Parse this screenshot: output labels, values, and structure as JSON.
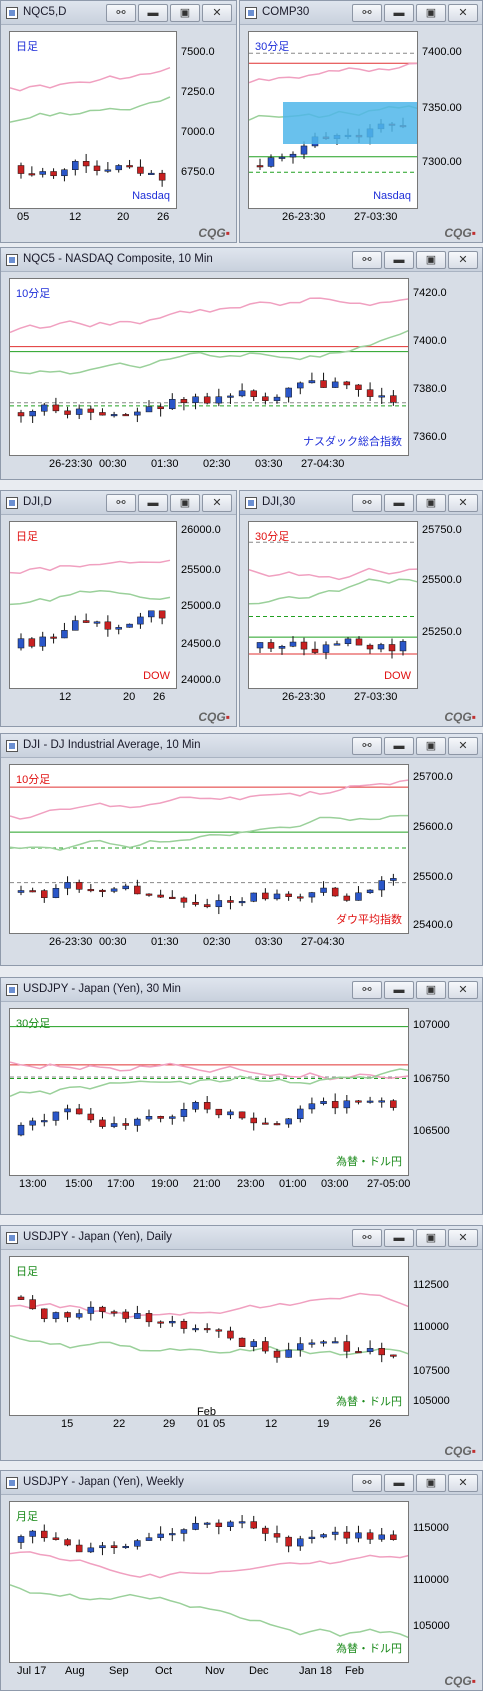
{
  "windows": [
    {
      "id": "w1",
      "title": "NQC5,D",
      "label": "日足",
      "caption": "Nasdaq",
      "label_color": "#1f2fd8",
      "caption_color": "#1f2fd8",
      "yticks": [
        "7500.0",
        "7250.0",
        "7000.0",
        "6750.0"
      ],
      "xticks": [
        "05",
        "12",
        "20",
        "26"
      ],
      "brand": "CQG"
    },
    {
      "id": "w2",
      "title": "COMP30",
      "label": "30分足",
      "caption": "Nasdaq",
      "label_color": "#1f2fd8",
      "caption_color": "#1f2fd8",
      "yticks": [
        "7400.00",
        "7350.00",
        "7300.00"
      ],
      "xticks": [
        "26-23:30",
        "27-03:30"
      ],
      "brand": "CQG"
    },
    {
      "id": "w3",
      "title": "NQC5 - NASDAQ Composite, 10 Min",
      "label": "10分足",
      "caption": "ナスダック総合指数",
      "label_color": "#1f2fd8",
      "caption_color": "#1f2fd8",
      "yticks": [
        "7420.0",
        "7400.0",
        "7380.0",
        "7360.0"
      ],
      "xticks": [
        "26-23:30",
        "00:30",
        "01:30",
        "02:30",
        "03:30",
        "27-04:30"
      ]
    },
    {
      "id": "w4",
      "title": "DJI,D",
      "label": "日足",
      "caption": "DOW",
      "label_color": "#e01010",
      "caption_color": "#e01010",
      "yticks": [
        "26000.0",
        "25500.0",
        "25000.0",
        "24500.0",
        "24000.0"
      ],
      "xticks": [
        "12",
        "20",
        "26"
      ],
      "brand": "CQG"
    },
    {
      "id": "w5",
      "title": "DJI,30",
      "label": "30分足",
      "caption": "DOW",
      "label_color": "#e01010",
      "caption_color": "#e01010",
      "yticks": [
        "25750.0",
        "25500.0",
        "25250.0"
      ],
      "xticks": [
        "26-23:30",
        "27-03:30"
      ],
      "brand": "CQG"
    },
    {
      "id": "w6",
      "title": "DJI - DJ Industrial Average, 10 Min",
      "label": "10分足",
      "caption": "ダウ平均指数",
      "label_color": "#e01010",
      "caption_color": "#e01010",
      "yticks": [
        "25700.0",
        "25600.0",
        "25500.0",
        "25400.0"
      ],
      "xticks": [
        "26-23:30",
        "00:30",
        "01:30",
        "02:30",
        "03:30",
        "27-04:30"
      ]
    },
    {
      "id": "w7",
      "title": "USDJPY - Japan (Yen), 30 Min",
      "label": "30分足",
      "caption": "為替・ドル円",
      "label_color": "#1a8a1a",
      "caption_color": "#1a8a1a",
      "yticks": [
        "107000",
        "106750",
        "106500"
      ],
      "xticks": [
        "13:00",
        "15:00",
        "17:00",
        "19:00",
        "21:00",
        "23:00",
        "01:00",
        "03:00",
        "27-05:00"
      ]
    },
    {
      "id": "w8",
      "title": "USDJPY - Japan (Yen), Daily",
      "label": "日足",
      "caption": "為替・ドル円",
      "label_color": "#1a8a1a",
      "caption_color": "#1a8a1a",
      "yticks": [
        "112500",
        "110000",
        "107500",
        "105000"
      ],
      "xticks": [
        "15",
        "22",
        "29",
        "01",
        "05",
        "12",
        "19",
        "26"
      ],
      "xextra": "Feb",
      "brand": "CQG"
    },
    {
      "id": "w9",
      "title": "USDJPY - Japan (Yen), Weekly",
      "label": "月足",
      "caption": "為替・ドル円",
      "label_color": "#1a8a1a",
      "caption_color": "#1a8a1a",
      "yticks": [
        "115000",
        "110000",
        "105000"
      ],
      "xticks": [
        "Jul 17",
        "Aug",
        "Sep",
        "Oct",
        "Nov",
        "Dec",
        "Jan 18",
        "Feb"
      ],
      "brand": "CQG"
    }
  ],
  "buttons": {
    "link": "⚯",
    "min": "▬",
    "max": "▣",
    "close": "✕"
  }
}
